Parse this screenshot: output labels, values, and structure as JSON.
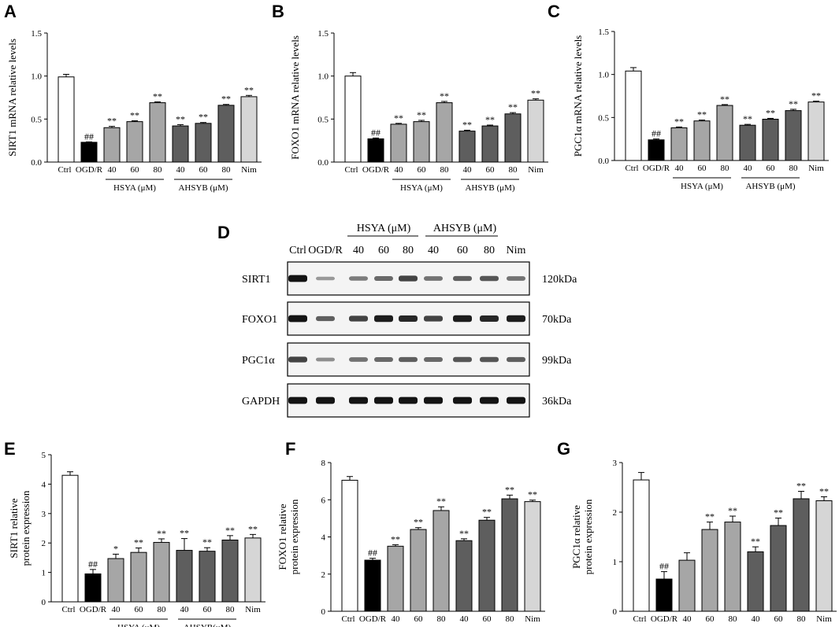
{
  "colors": {
    "Ctrl": "#ffffff",
    "OGD/R": "#000000",
    "HSYA": "#a6a6a6",
    "AHSYB": "#5e5e5e",
    "Nim": "#d6d6d6"
  },
  "group_labels": {
    "hsya": "HSYA (μM)",
    "ahsyb": "AHSYB (μM)",
    "ahsyb_nospace": "AHSYB(μM)"
  },
  "chart_data": [
    {
      "id": "A",
      "letter": "A",
      "type": "bar",
      "ylabel": "SIRT1 mRNA relative levels",
      "ylim": [
        0,
        1.5
      ],
      "yticks": [
        "0.0",
        "0.5",
        "1.0",
        "1.5"
      ],
      "ytick_values": [
        0,
        0.5,
        1.0,
        1.5
      ],
      "categories": [
        "Ctrl",
        "OGD/R",
        "40",
        "60",
        "80",
        "40",
        "60",
        "80",
        "Nim"
      ],
      "groups": [
        "Ctrl",
        "OGD/R",
        "HSYA",
        "HSYA",
        "HSYA",
        "AHSYB",
        "AHSYB",
        "AHSYB",
        "Nim"
      ],
      "values": [
        0.99,
        0.23,
        0.4,
        0.47,
        0.69,
        0.42,
        0.45,
        0.66,
        0.76
      ],
      "errors": [
        0.03,
        0.005,
        0.015,
        0.01,
        0.01,
        0.015,
        0.01,
        0.01,
        0.015
      ],
      "sig": [
        "",
        "##",
        "**",
        "**",
        "**",
        "**",
        "**",
        "**",
        "**"
      ],
      "group_label_keys": [
        "hsya",
        "ahsyb"
      ]
    },
    {
      "id": "B",
      "letter": "B",
      "type": "bar",
      "ylabel": "FOXO1 mRNA relative levels",
      "ylim": [
        0,
        1.5
      ],
      "yticks": [
        "0.0",
        "0.5",
        "1.0",
        "1.5"
      ],
      "ytick_values": [
        0,
        0.5,
        1.0,
        1.5
      ],
      "categories": [
        "Ctrl",
        "OGD/R",
        "40",
        "60",
        "80",
        "40",
        "60",
        "80",
        "Nim"
      ],
      "groups": [
        "Ctrl",
        "OGD/R",
        "HSYA",
        "HSYA",
        "HSYA",
        "AHSYB",
        "AHSYB",
        "AHSYB",
        "Nim"
      ],
      "values": [
        1.0,
        0.27,
        0.44,
        0.47,
        0.69,
        0.36,
        0.42,
        0.56,
        0.72
      ],
      "errors": [
        0.04,
        0.01,
        0.01,
        0.015,
        0.015,
        0.01,
        0.01,
        0.015,
        0.015
      ],
      "sig": [
        "",
        "##",
        "**",
        "**",
        "**",
        "**",
        "**",
        "**",
        "**"
      ],
      "group_label_keys": [
        "hsya",
        "ahsyb"
      ]
    },
    {
      "id": "C",
      "letter": "C",
      "type": "bar",
      "ylabel": "PGC1α mRNA relative levels",
      "ylim": [
        0,
        1.5
      ],
      "yticks": [
        "0.0",
        "0.5",
        "1.0",
        "1.5"
      ],
      "ytick_values": [
        0,
        0.5,
        1.0,
        1.5
      ],
      "categories": [
        "Ctrl",
        "OGD/R",
        "40",
        "60",
        "80",
        "40",
        "60",
        "80",
        "Nim"
      ],
      "groups": [
        "Ctrl",
        "OGD/R",
        "HSYA",
        "HSYA",
        "HSYA",
        "AHSYB",
        "AHSYB",
        "AHSYB",
        "Nim"
      ],
      "values": [
        1.04,
        0.24,
        0.38,
        0.46,
        0.64,
        0.41,
        0.48,
        0.58,
        0.68
      ],
      "errors": [
        0.04,
        0.01,
        0.01,
        0.01,
        0.01,
        0.01,
        0.01,
        0.015,
        0.01
      ],
      "sig": [
        "",
        "##",
        "**",
        "**",
        "**",
        "**",
        "**",
        "**",
        "**"
      ],
      "group_label_keys": [
        "hsya",
        "ahsyb"
      ]
    },
    {
      "id": "E",
      "letter": "E",
      "type": "bar",
      "ylabel": [
        "SIRT1 relative",
        "protein expression"
      ],
      "ylim": [
        0,
        5
      ],
      "yticks": [
        "0",
        "1",
        "2",
        "3",
        "4",
        "5"
      ],
      "ytick_values": [
        0,
        1,
        2,
        3,
        4,
        5
      ],
      "categories": [
        "Ctrl",
        "OGD/R",
        "40",
        "60",
        "80",
        "40",
        "60",
        "80",
        "Nim"
      ],
      "groups": [
        "Ctrl",
        "OGD/R",
        "HSYA",
        "HSYA",
        "HSYA",
        "AHSYB",
        "AHSYB",
        "AHSYB",
        "Nim"
      ],
      "values": [
        4.3,
        0.95,
        1.47,
        1.68,
        2.02,
        1.75,
        1.72,
        2.1,
        2.17
      ],
      "errors": [
        0.12,
        0.15,
        0.15,
        0.15,
        0.12,
        0.4,
        0.12,
        0.15,
        0.12
      ],
      "sig": [
        "",
        "##",
        "*",
        "**",
        "**",
        "**",
        "**",
        "**",
        "**"
      ],
      "group_label_keys": [
        "hsya",
        "ahsyb_nospace"
      ]
    },
    {
      "id": "F",
      "letter": "F",
      "type": "bar",
      "ylabel": [
        "FOXO1 relative",
        "protein expression"
      ],
      "ylim": [
        0,
        8
      ],
      "yticks": [
        "0",
        "2",
        "4",
        "6",
        "8"
      ],
      "ytick_values": [
        0,
        2,
        4,
        6,
        8
      ],
      "categories": [
        "Ctrl",
        "OGD/R",
        "40",
        "60",
        "80",
        "40",
        "60",
        "80",
        "Nim"
      ],
      "groups": [
        "Ctrl",
        "OGD/R",
        "HSYA",
        "HSYA",
        "HSYA",
        "AHSYB",
        "AHSYB",
        "AHSYB",
        "Nim"
      ],
      "values": [
        7.05,
        2.75,
        3.5,
        4.4,
        5.42,
        3.8,
        4.9,
        6.05,
        5.9
      ],
      "errors": [
        0.2,
        0.1,
        0.08,
        0.1,
        0.2,
        0.1,
        0.15,
        0.2,
        0.08
      ],
      "sig": [
        "",
        "##",
        "**",
        "**",
        "**",
        "**",
        "**",
        "**",
        "**"
      ],
      "group_label_keys": [
        "hsya",
        "ahsyb"
      ]
    },
    {
      "id": "G",
      "letter": "G",
      "type": "bar",
      "ylabel": [
        "PGC1α relative",
        "protein expression"
      ],
      "ylim": [
        0,
        3
      ],
      "yticks": [
        "0",
        "1",
        "2",
        "3"
      ],
      "ytick_values": [
        0,
        1,
        2,
        3
      ],
      "categories": [
        "Ctrl",
        "OGD/R",
        "40",
        "60",
        "80",
        "40",
        "60",
        "80",
        "Nim"
      ],
      "groups": [
        "Ctrl",
        "OGD/R",
        "HSYA",
        "HSYA",
        "HSYA",
        "AHSYB",
        "AHSYB",
        "AHSYB",
        "Nim"
      ],
      "values": [
        2.65,
        0.65,
        1.03,
        1.65,
        1.8,
        1.2,
        1.73,
        2.27,
        2.23
      ],
      "errors": [
        0.15,
        0.15,
        0.15,
        0.15,
        0.12,
        0.1,
        0.15,
        0.15,
        0.08
      ],
      "sig": [
        "",
        "##",
        "",
        "**",
        "**",
        "**",
        "**",
        "**",
        "**"
      ],
      "group_label_keys": [
        "hsya",
        "ahsyb"
      ]
    }
  ],
  "western_blot": {
    "letter": "D",
    "group_labels": [
      "HSYA (μM)",
      "AHSYB (μM)"
    ],
    "lanes": [
      "Ctrl",
      "OGD/R",
      "40",
      "60",
      "80",
      "40",
      "60",
      "80",
      "Nim"
    ],
    "rows": [
      {
        "protein": "SIRT1",
        "size": "120kDa",
        "intensity": [
          0.95,
          0.25,
          0.4,
          0.5,
          0.7,
          0.45,
          0.55,
          0.6,
          0.45
        ]
      },
      {
        "protein": "FOXO1",
        "size": "70kDa",
        "intensity": [
          0.95,
          0.55,
          0.7,
          0.9,
          0.85,
          0.7,
          0.9,
          0.85,
          0.9
        ]
      },
      {
        "protein": "PGC1α",
        "size": "99kDa",
        "intensity": [
          0.7,
          0.3,
          0.45,
          0.5,
          0.55,
          0.5,
          0.6,
          0.6,
          0.55
        ]
      },
      {
        "protein": "GAPDH",
        "size": "36kDa",
        "intensity": [
          0.95,
          0.95,
          0.95,
          0.95,
          0.95,
          0.95,
          0.95,
          0.95,
          0.95
        ]
      }
    ]
  }
}
